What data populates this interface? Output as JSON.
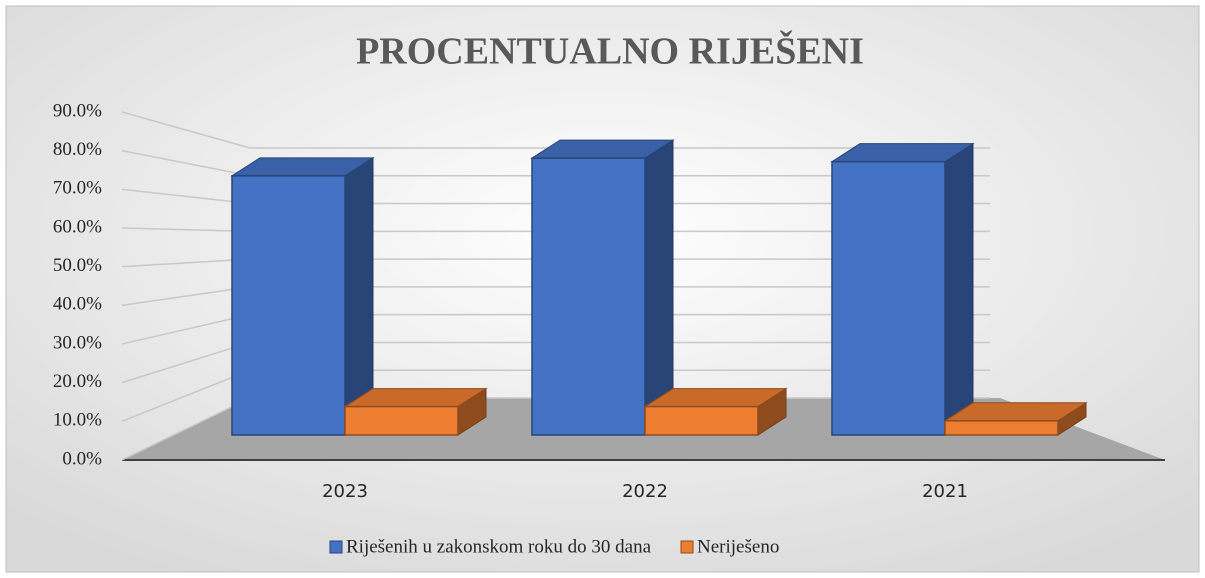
{
  "chart_data": {
    "type": "bar3d",
    "title": "PROCENTUALNO RIJEŠENI",
    "categories": [
      "2023",
      "2022",
      "2021"
    ],
    "series": [
      {
        "name": "Riješenih u zakonskom roku do 30 dana",
        "color": "#4472c4",
        "values": [
          73,
          78,
          77
        ]
      },
      {
        "name": "Neriješeno",
        "color": "#ed7d31",
        "values": [
          8,
          8,
          4
        ]
      }
    ],
    "ylim": [
      0,
      90
    ],
    "yticks": [
      {
        "value": 0,
        "label": "0.0%"
      },
      {
        "value": 10,
        "label": "10.0%"
      },
      {
        "value": 20,
        "label": "20.0%"
      },
      {
        "value": 30,
        "label": "30.0%"
      },
      {
        "value": 40,
        "label": "40.0%"
      },
      {
        "value": 50,
        "label": "50.0%"
      },
      {
        "value": 60,
        "label": "60.0%"
      },
      {
        "value": 70,
        "label": "70.0%"
      },
      {
        "value": 80,
        "label": "80.0%"
      },
      {
        "value": 90,
        "label": "90.0%"
      }
    ],
    "grid": true,
    "legend": "bottom"
  }
}
